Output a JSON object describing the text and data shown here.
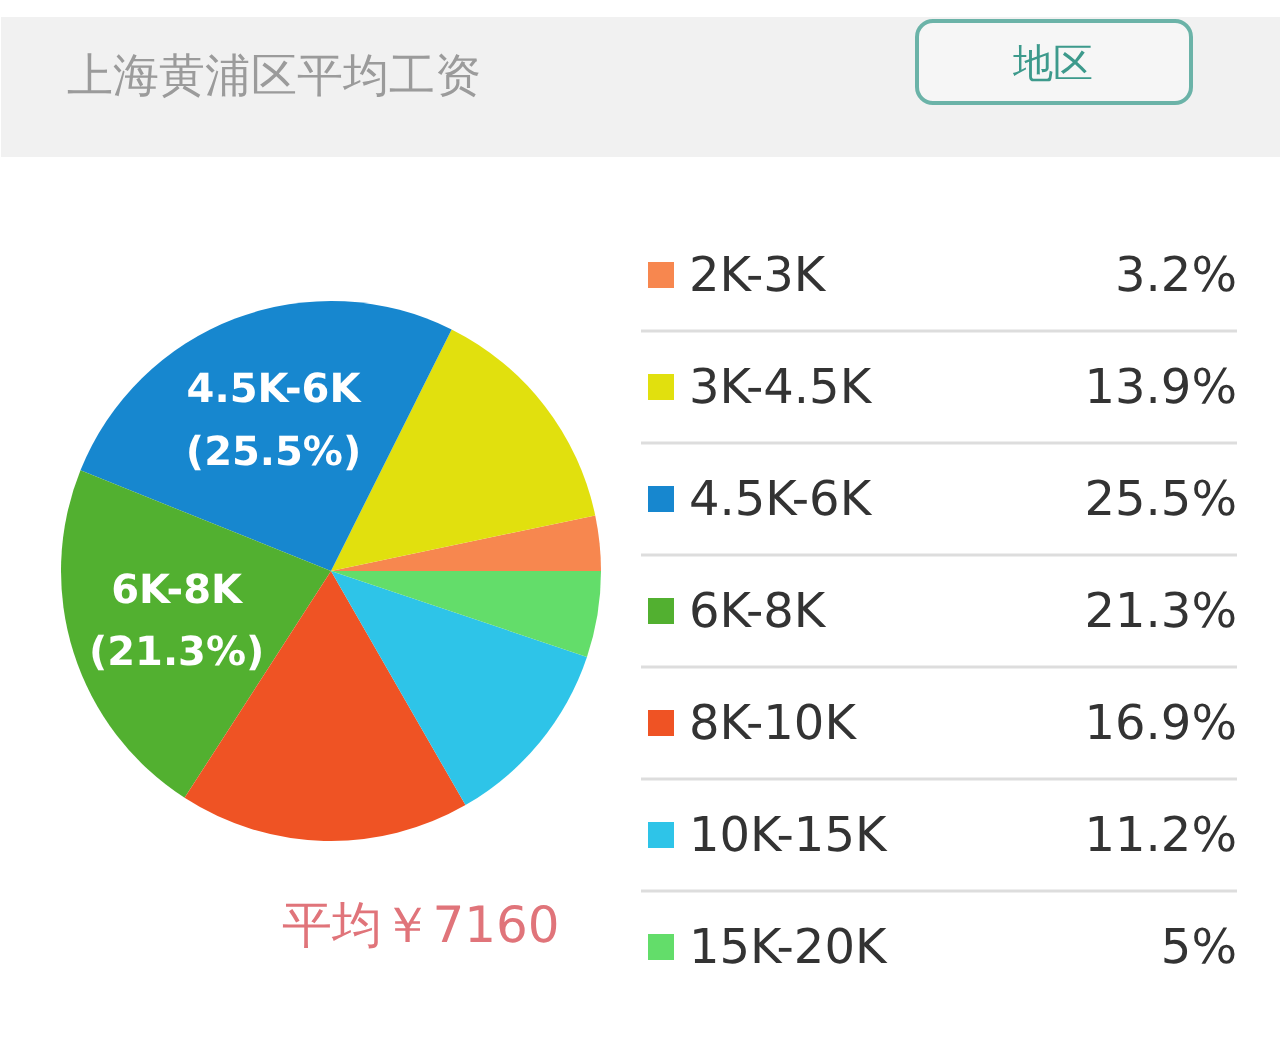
{
  "chart_data": {
    "type": "pie",
    "title": "上海黄浦区平均工资",
    "categories": [
      "2K-3K",
      "3K-4.5K",
      "4.5K-6K",
      "6K-8K",
      "8K-10K",
      "10K-15K",
      "15K-20K"
    ],
    "values": [
      3.2,
      13.9,
      25.5,
      21.3,
      16.9,
      11.2,
      5
    ],
    "colors": [
      "#f7874f",
      "#e1e00e",
      "#1787cf",
      "#52b030",
      "#ef5324",
      "#2ec4e8",
      "#63dd6a"
    ],
    "value_labels": [
      "3.2%",
      "13.9%",
      "25.5%",
      "21.3%",
      "16.9%",
      "11.2%",
      "5%"
    ],
    "legend": "right",
    "annotations": [
      "地区",
      {
        "text": "6K-8K\n(21.3%)",
        "x": "6K-8K"
      },
      {
        "text": "4.5K-6K\n(25.5%)",
        "x": "4.5K-6K"
      },
      "平均￥7160"
    ]
  }
}
